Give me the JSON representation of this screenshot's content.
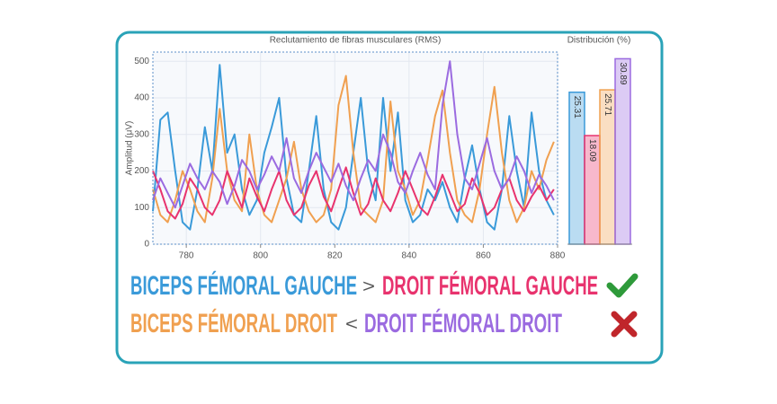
{
  "chart_data": [
    {
      "type": "line",
      "title": "Reclutamiento de fibras musculares (RMS)",
      "ylabel": "Amplitud (μV)",
      "x": [
        771,
        773,
        775,
        777,
        779,
        781,
        783,
        785,
        787,
        789,
        791,
        793,
        795,
        797,
        799,
        801,
        803,
        805,
        807,
        809,
        811,
        813,
        815,
        817,
        819,
        821,
        823,
        825,
        827,
        829,
        831,
        833,
        835,
        837,
        839,
        841,
        843,
        845,
        847,
        849,
        851,
        853,
        855,
        857,
        859,
        861,
        863,
        865,
        867,
        869,
        871,
        873,
        875,
        877,
        879
      ],
      "xlim": [
        771,
        880
      ],
      "xticks": [
        780,
        800,
        820,
        840,
        860,
        880
      ],
      "ylim": [
        0,
        525
      ],
      "yticks": [
        0,
        100,
        200,
        300,
        400,
        500
      ],
      "grid": true,
      "series": [
        {
          "color": "#3a9ad9",
          "values": [
            90,
            340,
            360,
            200,
            60,
            40,
            150,
            320,
            200,
            490,
            250,
            300,
            150,
            80,
            120,
            250,
            320,
            400,
            180,
            80,
            60,
            200,
            350,
            150,
            60,
            40,
            100,
            250,
            400,
            200,
            120,
            400,
            200,
            360,
            120,
            60,
            80,
            150,
            120,
            170,
            100,
            60,
            180,
            270,
            150,
            60,
            40,
            150,
            350,
            200,
            100,
            360,
            200,
            120,
            80
          ]
        },
        {
          "color": "#f0a050",
          "values": [
            150,
            80,
            60,
            120,
            200,
            150,
            90,
            60,
            180,
            370,
            200,
            120,
            90,
            300,
            150,
            80,
            60,
            120,
            180,
            280,
            150,
            90,
            60,
            80,
            150,
            380,
            460,
            250,
            100,
            80,
            60,
            120,
            390,
            200,
            150,
            80,
            120,
            230,
            350,
            420,
            250,
            120,
            80,
            60,
            150,
            300,
            430,
            250,
            120,
            60,
            100,
            200,
            150,
            230,
            280
          ]
        },
        {
          "color": "#e8336e",
          "values": [
            200,
            150,
            90,
            70,
            110,
            180,
            150,
            100,
            80,
            120,
            200,
            150,
            100,
            180,
            130,
            90,
            150,
            200,
            120,
            80,
            100,
            160,
            200,
            130,
            90,
            150,
            210,
            140,
            80,
            110,
            180,
            120,
            90,
            140,
            200,
            150,
            100,
            80,
            130,
            190,
            140,
            90,
            110,
            180,
            140,
            80,
            100,
            150,
            180,
            120,
            90,
            130,
            160,
            120,
            150
          ]
        },
        {
          "color": "#9b6be0",
          "values": [
            120,
            180,
            140,
            100,
            160,
            220,
            180,
            150,
            200,
            170,
            110,
            160,
            230,
            200,
            150,
            190,
            240,
            200,
            290,
            180,
            140,
            200,
            250,
            210,
            170,
            220,
            160,
            120,
            180,
            230,
            200,
            300,
            250,
            170,
            140,
            200,
            250,
            190,
            150,
            380,
            500,
            300,
            180,
            150,
            220,
            290,
            200,
            150,
            180,
            240,
            200,
            140,
            190,
            160,
            120
          ]
        }
      ]
    },
    {
      "type": "bar",
      "title": "Distribución (%)",
      "values": [
        25.31,
        18.09,
        25.71,
        30.89
      ],
      "colors": [
        "#3a9ad9",
        "#e8336e",
        "#f0a050",
        "#9b6be0"
      ],
      "ylim": [
        0,
        32
      ]
    }
  ],
  "comparisons": [
    {
      "left": "BICEPS FÉMORAL GAUCHE",
      "left_color": "#3a9ad9",
      "operator": ">",
      "right": "DROIT FÉMORAL GAUCHE",
      "right_color": "#e8336e"
    },
    {
      "left": "BICEPS FÉMORAL DROIT",
      "left_color": "#f0a050",
      "operator": "<",
      "right": "DROIT FÉMORAL DROIT",
      "right_color": "#9b6be0"
    }
  ]
}
